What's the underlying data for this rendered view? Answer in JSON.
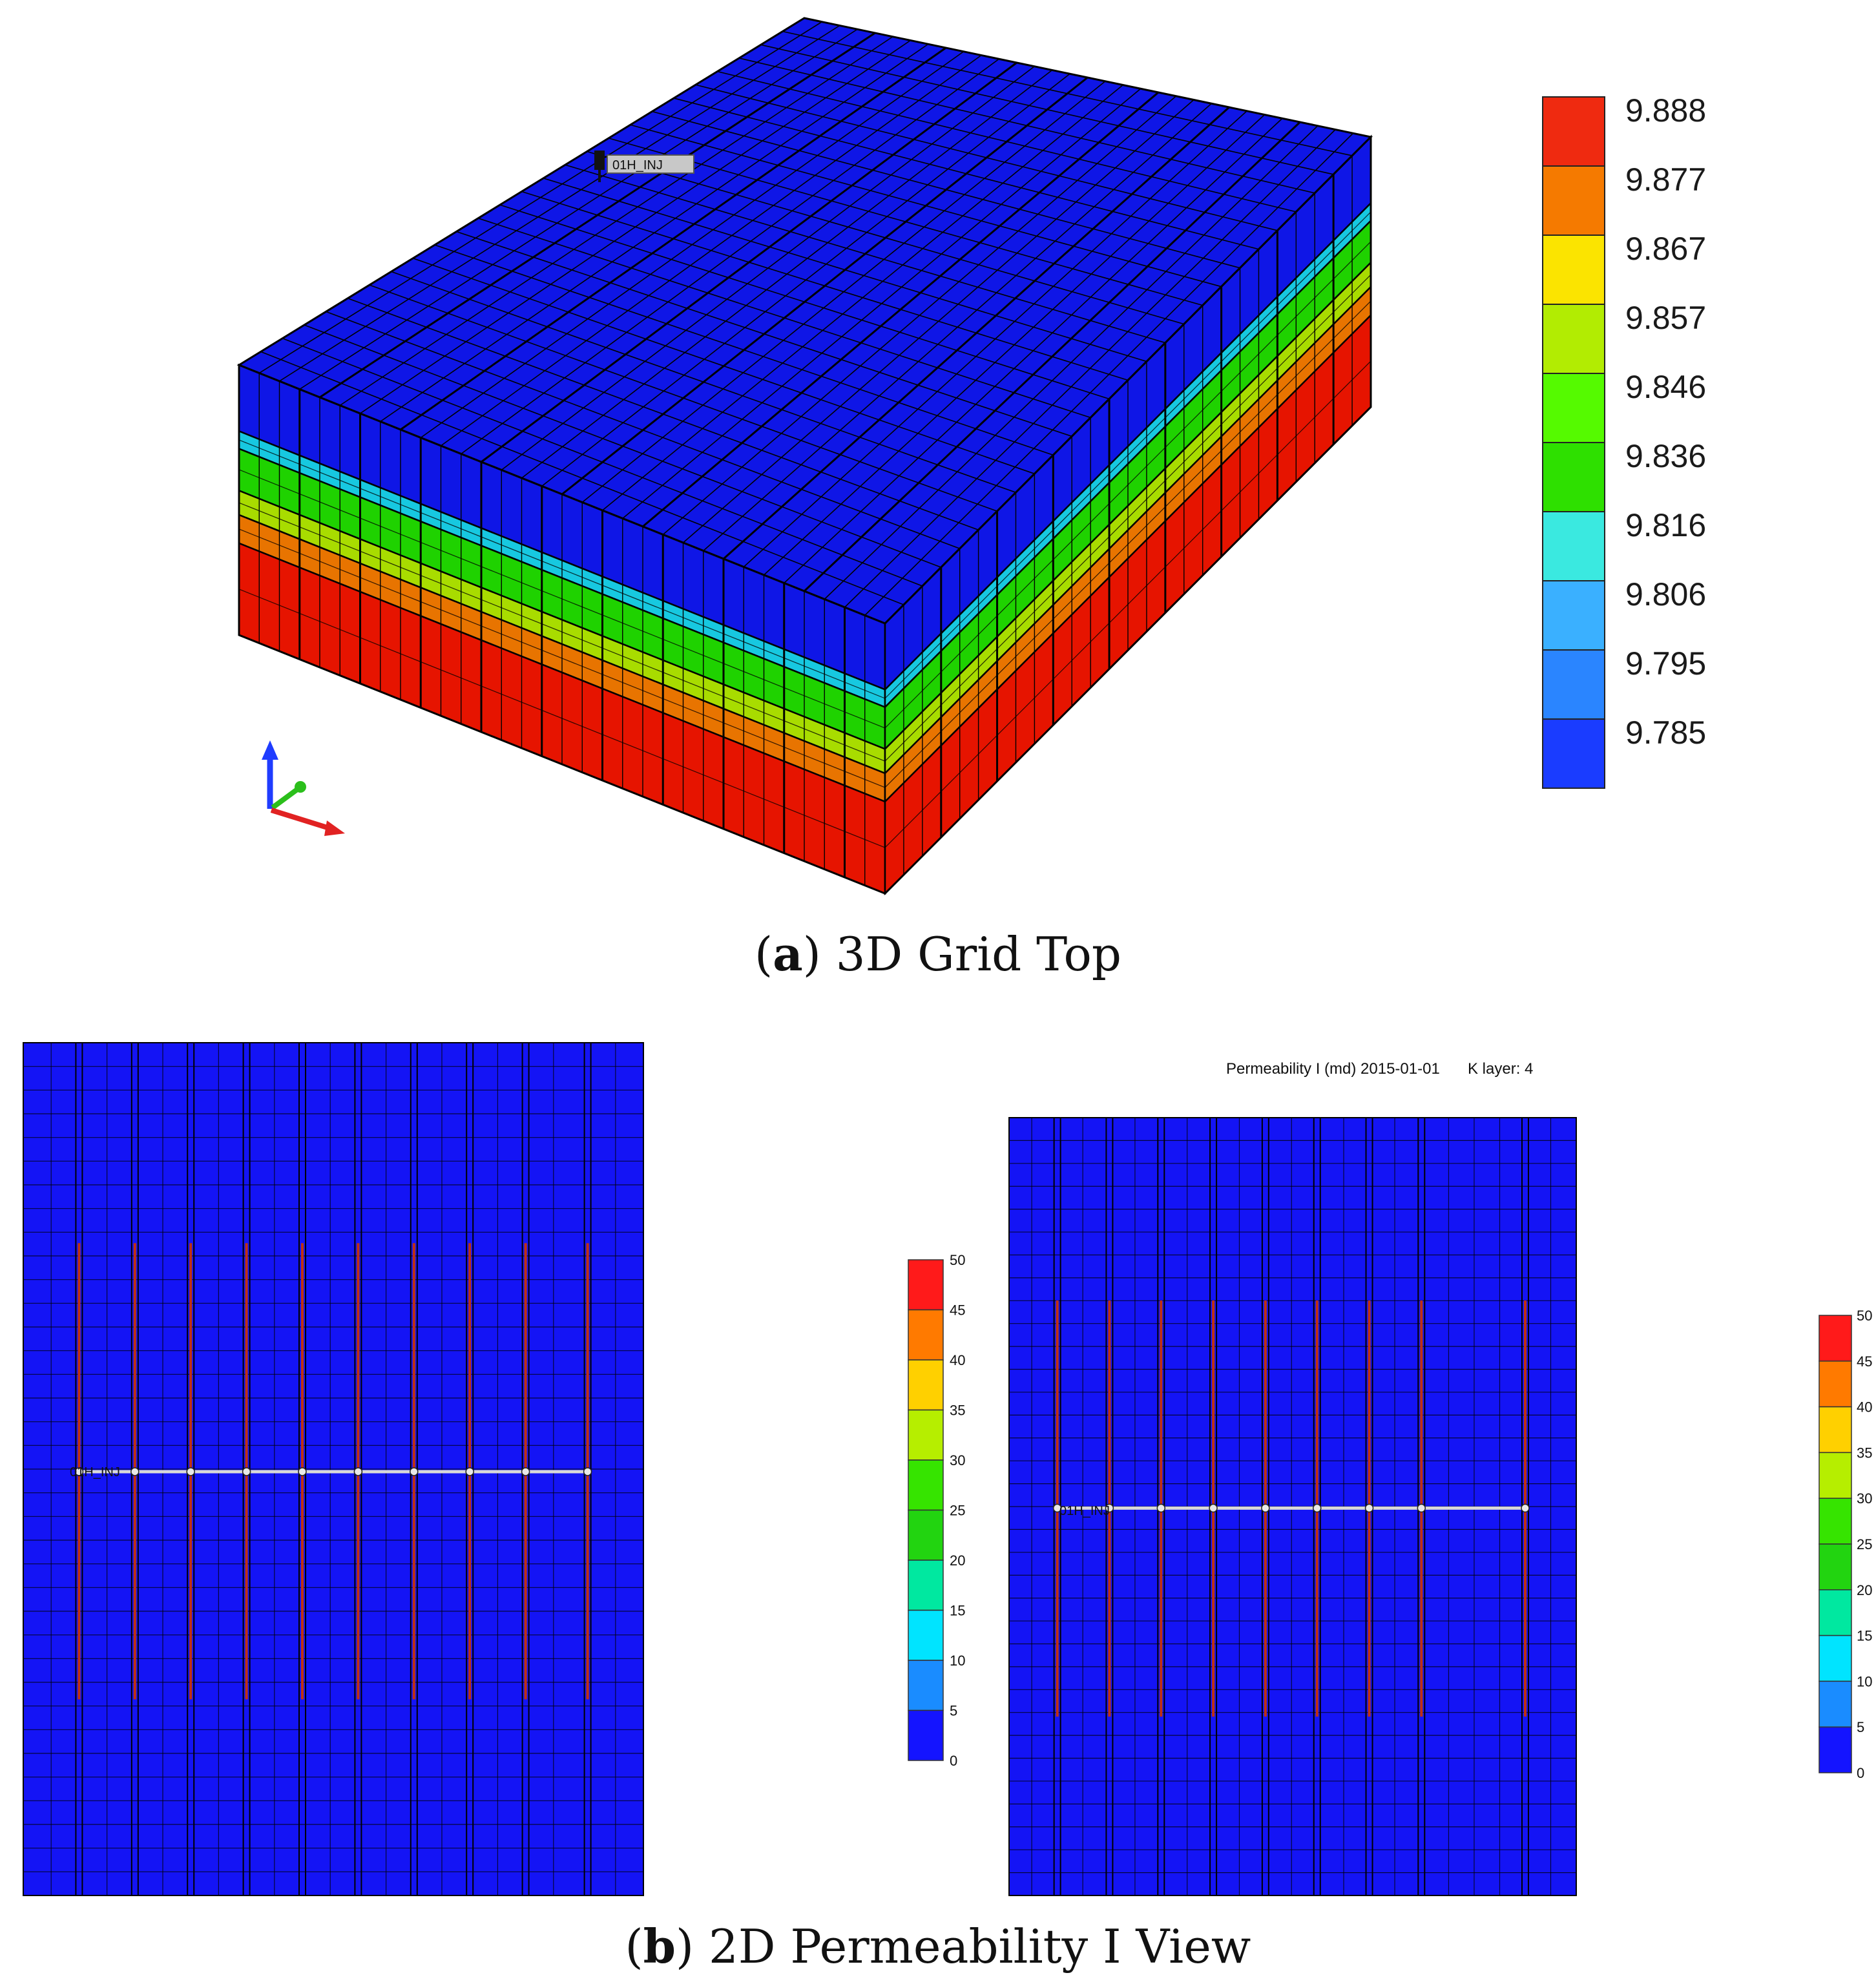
{
  "panel_a": {
    "caption": {
      "letter": "a",
      "text": "3D Grid Top"
    },
    "well_label": "01H_INJ",
    "legend": {
      "values": [
        "9.888",
        "9.877",
        "9.867",
        "9.857",
        "9.846",
        "9.836",
        "9.816",
        "9.806",
        "9.795",
        "9.785"
      ],
      "colors": [
        "#ef2a10",
        "#f57a00",
        "#fbe400",
        "#b2ec02",
        "#55fa00",
        "#2ee000",
        "#3ae9e0",
        "#3ab0ff",
        "#2a85ff",
        "#1a3cff"
      ]
    },
    "layer_colors": [
      "#0f16e6",
      "#17c8e0",
      "#1fd200",
      "#a8dc00",
      "#e87400",
      "#e61400"
    ],
    "axis_colors": {
      "z": "#1f3cff",
      "y": "#2bbf1b",
      "x": "#e12222"
    }
  },
  "panel_b": {
    "caption": {
      "letter": "b",
      "text": "2D Permeability I View"
    },
    "header": {
      "property": "Permeability I (md) 2015-01-01",
      "layer": "K layer: 4"
    },
    "well_label": "01H_INJ",
    "legend": {
      "values": [
        "50",
        "45",
        "40",
        "35",
        "30",
        "25",
        "20",
        "15",
        "10",
        "5",
        "0"
      ],
      "colors": [
        "#ff1a1a",
        "#ff7a00",
        "#ffd000",
        "#b6ee00",
        "#36e400",
        "#22d410",
        "#00e8a0",
        "#00e4ff",
        "#1a8cff",
        "#1414ff"
      ]
    },
    "grid_color": "#1414f5"
  }
}
